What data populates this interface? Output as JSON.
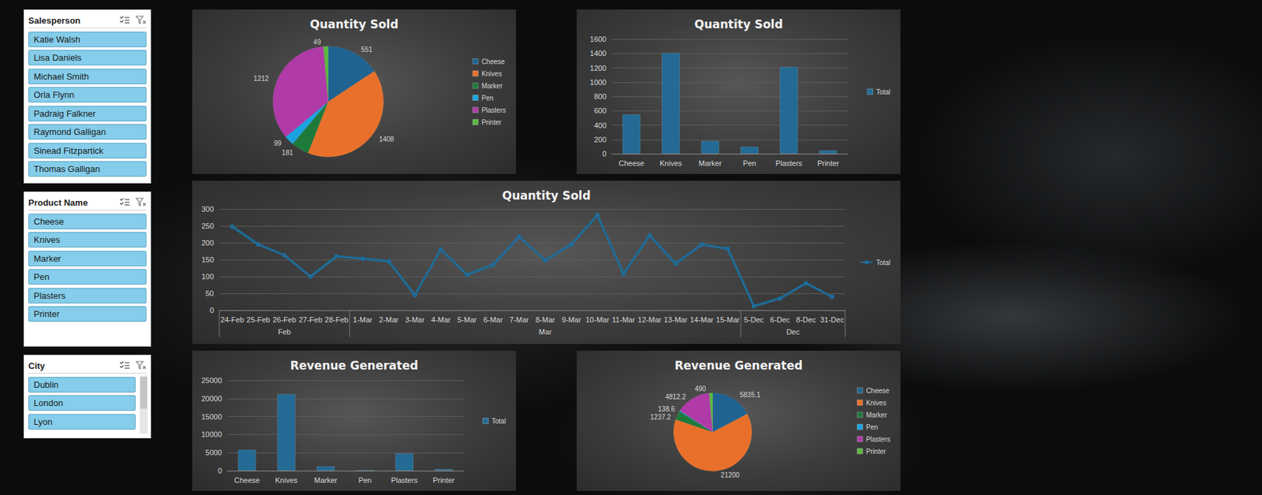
{
  "slicers": [
    {
      "title": "Salesperson",
      "items": [
        "Katie Walsh",
        "Lisa Daniels",
        "Michael Smith",
        "Orla Flynn",
        "Padraig Falkner",
        "Raymond Galligan",
        "Sinead Fitzpartick",
        "Thomas Galligan"
      ]
    },
    {
      "title": "Product Name",
      "items": [
        "Cheese",
        "Knives",
        "Marker",
        "Pen",
        "Plasters",
        "Printer"
      ]
    },
    {
      "title": "City",
      "items": [
        "Dublin",
        "London",
        "Lyon"
      ]
    }
  ],
  "chart_data": [
    {
      "type": "pie",
      "title": "Quantity Sold",
      "categories": [
        "Cheese",
        "Knives",
        "Marker",
        "Pen",
        "Plasters",
        "Printer"
      ],
      "values": [
        551,
        1408,
        181,
        99,
        1212,
        49
      ],
      "colors": [
        "#1f6391",
        "#e8702a",
        "#1e7a3a",
        "#1aa3e0",
        "#b03aa8",
        "#5cb840"
      ],
      "data_labels": true,
      "legend": "right"
    },
    {
      "type": "bar",
      "title": "Quantity Sold",
      "categories": [
        "Cheese",
        "Knives",
        "Marker",
        "Pen",
        "Plasters",
        "Printer"
      ],
      "series": [
        {
          "name": "Total",
          "color": "#236a94",
          "values": [
            551,
            1408,
            181,
            99,
            1212,
            49
          ]
        }
      ],
      "ylim": [
        0,
        1600
      ],
      "yticks": [
        0,
        200,
        400,
        600,
        800,
        1000,
        1200,
        1400,
        1600
      ],
      "grid": true,
      "legend": "right"
    },
    {
      "type": "line",
      "title": "Quantity Sold",
      "categories": [
        "24-Feb",
        "25-Feb",
        "26-Feb",
        "27-Feb",
        "28-Feb",
        "1-Mar",
        "2-Mar",
        "3-Mar",
        "4-Mar",
        "5-Mar",
        "6-Mar",
        "7-Mar",
        "8-Mar",
        "9-Mar",
        "10-Mar",
        "11-Mar",
        "12-Mar",
        "13-Mar",
        "14-Mar",
        "15-Mar",
        "5-Dec",
        "6-Dec",
        "8-Dec",
        "31-Dec"
      ],
      "groups": [
        "Feb",
        "Feb",
        "Feb",
        "Feb",
        "Feb",
        "Mar",
        "Mar",
        "Mar",
        "Mar",
        "Mar",
        "Mar",
        "Mar",
        "Mar",
        "Mar",
        "Mar",
        "Mar",
        "Mar",
        "Mar",
        "Mar",
        "Mar",
        "Dec",
        "Dec",
        "Dec",
        "Dec"
      ],
      "series": [
        {
          "name": "Total",
          "color": "#1f6b96",
          "marker": "circle",
          "values": [
            248,
            195,
            163,
            100,
            160,
            153,
            145,
            45,
            180,
            105,
            135,
            218,
            148,
            195,
            282,
            108,
            222,
            138,
            195,
            182,
            12,
            35,
            80,
            40
          ]
        }
      ],
      "ylim": [
        0,
        300
      ],
      "yticks": [
        0,
        50,
        100,
        150,
        200,
        250,
        300
      ],
      "grid": true,
      "legend": "right"
    },
    {
      "type": "bar",
      "title": "Revenue Generated",
      "categories": [
        "Cheese",
        "Knives",
        "Marker",
        "Pen",
        "Plasters",
        "Printer"
      ],
      "series": [
        {
          "name": "Total",
          "color": "#236a94",
          "values": [
            5835.1,
            21200,
            1237.2,
            138.6,
            4812.2,
            490
          ]
        }
      ],
      "ylim": [
        0,
        25000
      ],
      "yticks": [
        0,
        5000,
        10000,
        15000,
        20000,
        25000
      ],
      "grid": true,
      "legend": "right"
    },
    {
      "type": "pie",
      "title": "Revenue Generated",
      "categories": [
        "Cheese",
        "Knives",
        "Marker",
        "Pen",
        "Plasters",
        "Printer"
      ],
      "values": [
        5835.1,
        21200,
        1237.2,
        138.6,
        4812.2,
        490
      ],
      "colors": [
        "#1f6391",
        "#e8702a",
        "#1e7a3a",
        "#1aa3e0",
        "#b03aa8",
        "#5cb840"
      ],
      "data_labels": true,
      "legend": "right"
    }
  ]
}
